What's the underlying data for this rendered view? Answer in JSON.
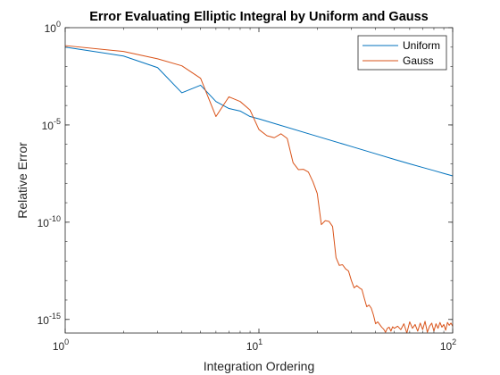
{
  "chart_data": {
    "type": "line",
    "title": "Error Evaluating Elliptic Integral by Uniform and Gauss",
    "xlabel": "Integration Ordering",
    "ylabel": "Relative Error",
    "xscale": "log",
    "yscale": "log",
    "xlim": [
      1,
      100
    ],
    "ylim": [
      2e-16,
      1
    ],
    "xticks": [
      {
        "value": 1,
        "base": "10",
        "exp": "0"
      },
      {
        "value": 10,
        "base": "10",
        "exp": "1"
      },
      {
        "value": 100,
        "base": "10",
        "exp": "2"
      }
    ],
    "yticks": [
      {
        "value": 1,
        "base": "10",
        "exp": "0"
      },
      {
        "value": 1e-05,
        "base": "10",
        "exp": "-5"
      },
      {
        "value": 1e-10,
        "base": "10",
        "exp": "-10"
      },
      {
        "value": 1e-15,
        "base": "10",
        "exp": "-15"
      }
    ],
    "grid": false,
    "legend_position": "top-right",
    "series": [
      {
        "name": "Uniform",
        "color": "#0072BD",
        "x": [
          1,
          2,
          3,
          4,
          5,
          6,
          7,
          8,
          9,
          10,
          20,
          30,
          40,
          50,
          60,
          70,
          80,
          90,
          100
        ],
        "y": [
          0.1,
          0.035,
          0.0088,
          0.00045,
          0.0011,
          0.00016,
          7e-05,
          5.2e-05,
          2.7e-05,
          2.05e-05,
          2.6e-06,
          7.8e-07,
          3.3e-07,
          1.7e-07,
          1e-07,
          6.5e-08,
          4.5e-08,
          3.2e-08,
          2.4e-08
        ]
      },
      {
        "name": "Gauss",
        "color": "#D95319",
        "x": [
          1,
          2,
          3,
          4,
          5,
          6,
          7,
          8,
          9,
          10,
          11,
          12,
          13,
          14,
          15,
          16,
          17,
          18,
          19,
          20,
          21,
          22,
          23,
          24,
          25,
          26,
          27,
          28,
          29,
          30,
          31,
          32,
          33,
          34,
          35,
          36,
          37,
          38,
          39,
          40,
          41,
          42,
          43,
          44,
          45,
          46,
          47,
          48,
          49,
          50,
          52,
          54,
          56,
          58,
          60,
          62,
          64,
          66,
          68,
          70,
          72,
          74,
          76,
          78,
          80,
          82,
          84,
          86,
          88,
          90,
          92,
          94,
          96,
          98,
          100
        ],
        "y": [
          0.12,
          0.06,
          0.025,
          0.011,
          0.0025,
          2.7e-05,
          0.00028,
          0.00016,
          5.8e-05,
          5.8e-06,
          2.8e-06,
          2.2e-06,
          3.5e-06,
          2e-06,
          1.15e-07,
          5e-08,
          5.2e-08,
          3.8e-08,
          1.2e-08,
          3e-09,
          7.5e-11,
          1.2e-10,
          1.1e-10,
          6e-11,
          1.5e-12,
          6e-13,
          6.5e-13,
          4e-13,
          3.1e-13,
          1e-13,
          4.2e-14,
          5.5e-14,
          4.2e-14,
          3.5e-14,
          1.2e-14,
          4.5e-15,
          5.5e-15,
          3.8e-15,
          1.7e-15,
          6e-16,
          7.5e-16,
          5.5e-16,
          4e-16,
          3.2e-16,
          2.2e-16,
          3.5e-16,
          4e-16,
          2.5e-16,
          4.2e-16,
          3.5e-16,
          4.5e-16,
          3e-16,
          6e-16,
          2e-16,
          7.5e-16,
          3.5e-16,
          5.5e-16,
          2.5e-16,
          6.5e-16,
          3e-16,
          8e-16,
          2.2e-16,
          4.5e-16,
          6.5e-16,
          2.5e-16,
          6e-16,
          3.5e-16,
          7e-16,
          4e-16,
          5.5e-16,
          2.8e-16,
          7e-16,
          5e-16,
          6.5e-16,
          4.5e-16
        ]
      }
    ]
  }
}
